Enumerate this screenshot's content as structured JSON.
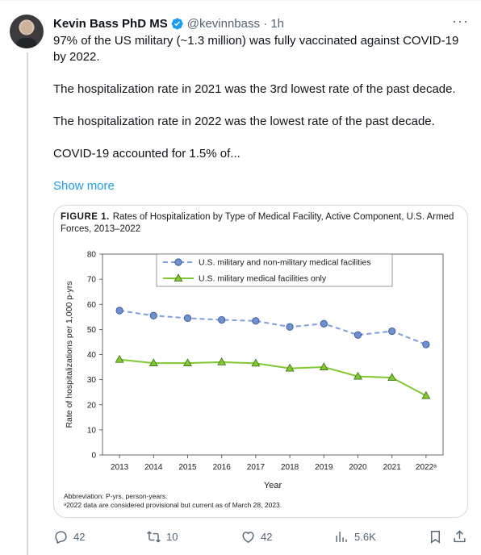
{
  "tweet": {
    "author_name": "Kevin Bass PhD MS",
    "handle_time": "@kevinnbass · 1h",
    "paragraphs": [
      "97% of the US military (~1.3 million) was fully vaccinated against COVID-19 by 2022.",
      "The hospitalization rate in 2021 was the 3rd lowest rate of the past decade.",
      "The hospitalization rate in 2022 was the lowest rate of the past decade.",
      "COVID-19 accounted for 1.5% of..."
    ],
    "show_more": "Show more",
    "verified_color": "#1d9bf0",
    "more_icon": "more-icon"
  },
  "figure": {
    "label": "FIGURE 1.",
    "title": "Rates of Hospitalization by Type of Medical Facility, Active Component, U.S. Armed Forces, 2013–2022",
    "note_abbrev": "Abbreviation: P-yrs, person-years.",
    "note_provisional": "ᵃ2022 data are considered provisional but current as of March 28, 2023."
  },
  "chart_data": {
    "type": "line",
    "xlabel": "Year",
    "ylabel": "Rate of hospitalizations per 1,000 p-yrs",
    "ylim": [
      0,
      80
    ],
    "yticks": [
      0,
      10,
      20,
      30,
      40,
      50,
      60,
      70,
      80
    ],
    "categories": [
      "2013",
      "2014",
      "2015",
      "2016",
      "2017",
      "2018",
      "2019",
      "2020",
      "2021",
      "2022ᵃ"
    ],
    "series": [
      {
        "name": "U.S. military and non-military medical facilities",
        "values": [
          57.5,
          55.5,
          54.5,
          53.8,
          53.4,
          51.0,
          52.3,
          47.8,
          49.3,
          44.0
        ],
        "color": "#7e9fd8",
        "marker": "circle",
        "dashed": true
      },
      {
        "name": "U.S. military medical facilities only",
        "values": [
          38.0,
          36.6,
          36.6,
          37.0,
          36.5,
          34.5,
          35.0,
          31.3,
          30.8,
          23.6
        ],
        "color": "#7fc832",
        "marker": "triangle",
        "dashed": false
      }
    ],
    "legend_position": "top-center",
    "grid": false
  },
  "actions": {
    "replies": "42",
    "reposts": "10",
    "likes": "42",
    "views": "5.6K"
  }
}
